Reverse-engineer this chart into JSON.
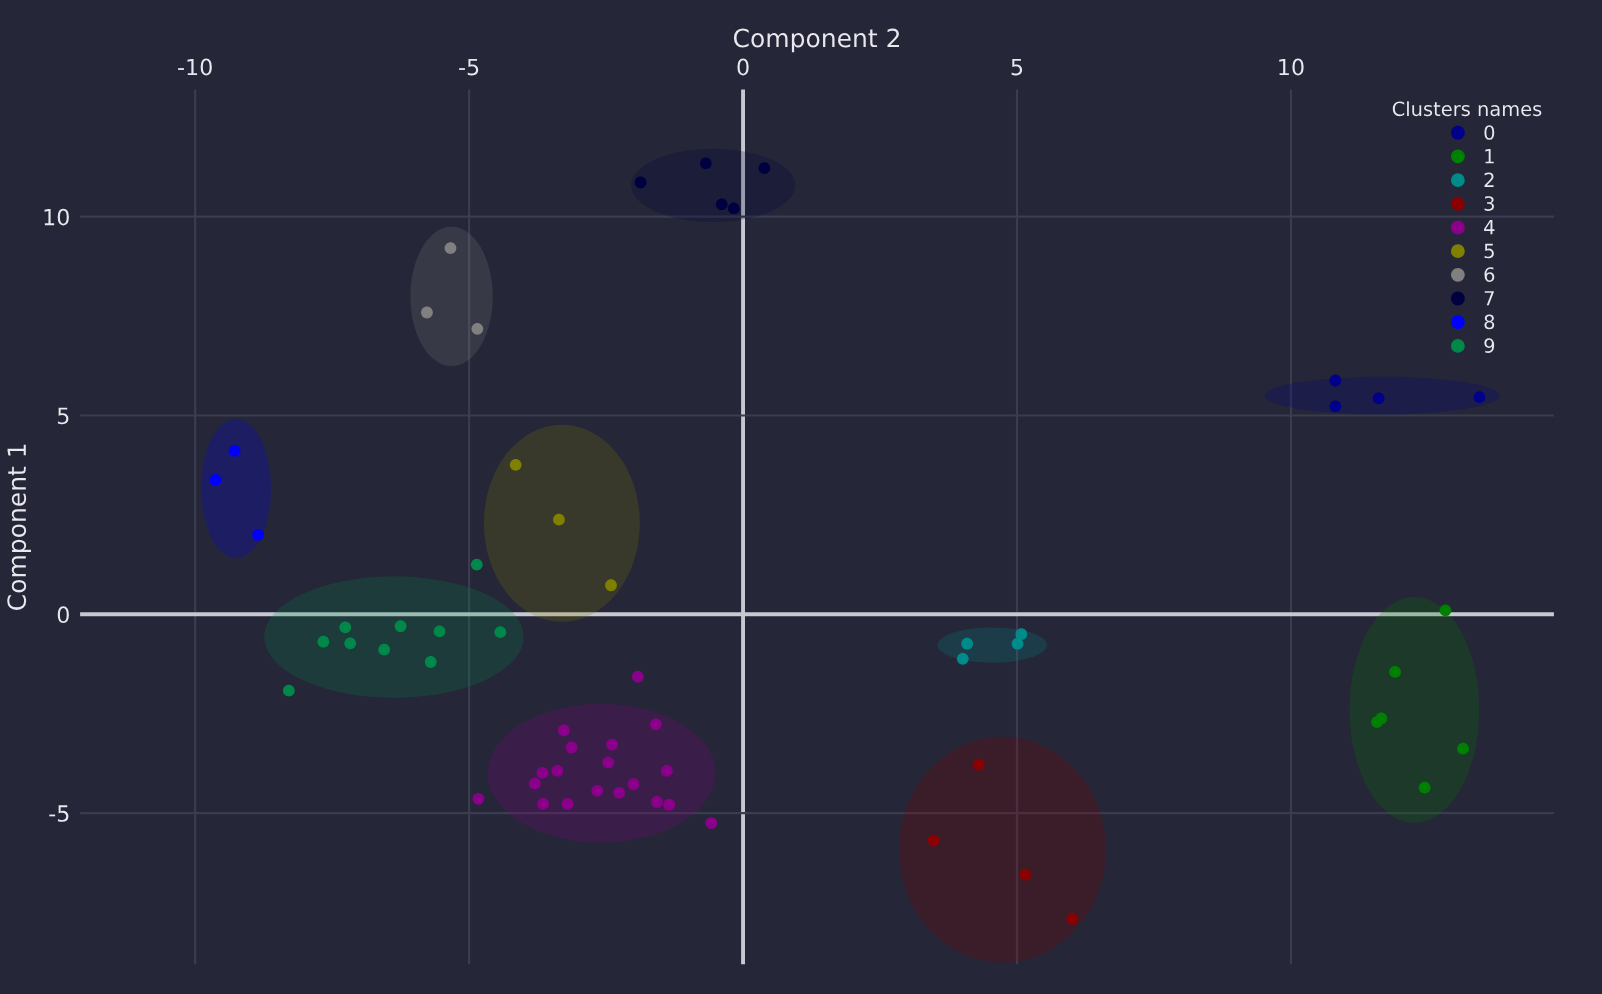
{
  "chart_data": {
    "type": "scatter",
    "xlabel": "Component 2",
    "ylabel": "Component 1",
    "legend_title": "Clusters names",
    "legend": "top right",
    "grid": true,
    "marker": "circle",
    "xlim": [
      -12.1,
      14.8
    ],
    "ylim": [
      -8.8,
      13.2
    ],
    "xticks": [
      -10,
      -5,
      0,
      5,
      10
    ],
    "yticks": [
      -5,
      0,
      5,
      10
    ],
    "series": [
      {
        "name": "0",
        "color": "#00008b",
        "x": [
          10.81,
          10.81,
          11.6,
          13.44
        ],
        "values": [
          5.88,
          5.23,
          5.43,
          5.46
        ]
      },
      {
        "name": "1",
        "color": "#008000",
        "x": [
          12.82,
          11.9,
          11.65,
          11.57,
          13.14,
          12.44
        ],
        "values": [
          0.1,
          -1.45,
          -2.62,
          -2.71,
          -3.38,
          -4.36
        ]
      },
      {
        "name": "2",
        "color": "#008b8b",
        "x": [
          5.08,
          4.09,
          5.01,
          4.01
        ],
        "values": [
          -0.5,
          -0.74,
          -0.74,
          -1.12
        ]
      },
      {
        "name": "3",
        "color": "#8b0000",
        "x": [
          4.3,
          3.48,
          5.15,
          6.01
        ],
        "values": [
          -3.78,
          -5.69,
          -6.55,
          -7.66
        ]
      },
      {
        "name": "4",
        "color": "#8b008b",
        "x": [
          -1.92,
          -3.27,
          -1.59,
          -3.13,
          -2.39,
          -2.46,
          -3.66,
          -3.39,
          -1.39,
          -3.8,
          -2.66,
          -2.26,
          -2.0,
          -3.65,
          -3.2,
          -1.57,
          -1.35,
          -4.83,
          -0.58
        ],
        "values": [
          -1.57,
          -2.92,
          -2.77,
          -3.35,
          -3.28,
          -3.73,
          -3.99,
          -3.94,
          -3.94,
          -4.26,
          -4.44,
          -4.49,
          -4.27,
          -4.77,
          -4.77,
          -4.72,
          -4.79,
          -4.64,
          -5.25
        ]
      },
      {
        "name": "5",
        "color": "#808000",
        "x": [
          -4.15,
          -3.36,
          -2.41
        ],
        "values": [
          3.76,
          2.38,
          0.73
        ]
      },
      {
        "name": "6",
        "color": "#808080",
        "x": [
          -5.34,
          -5.77,
          -4.85
        ],
        "values": [
          9.21,
          7.59,
          7.18
        ]
      },
      {
        "name": "7",
        "color": "#000040",
        "x": [
          -1.87,
          -0.68,
          0.39,
          -0.39,
          -0.17
        ],
        "values": [
          10.86,
          11.34,
          11.22,
          10.31,
          10.21
        ]
      },
      {
        "name": "8",
        "color": "#0000ff",
        "x": [
          -9.28,
          -9.63,
          -8.85
        ],
        "values": [
          4.11,
          3.38,
          2.0
        ]
      },
      {
        "name": "9",
        "color": "#00884a",
        "x": [
          -4.86,
          -7.26,
          -6.25,
          -5.54,
          -4.43,
          -7.66,
          -7.17,
          -6.55,
          -5.7,
          -8.29
        ],
        "values": [
          1.25,
          -0.33,
          -0.3,
          -0.43,
          -0.45,
          -0.69,
          -0.73,
          -0.89,
          -1.2,
          -1.92
        ]
      }
    ]
  }
}
